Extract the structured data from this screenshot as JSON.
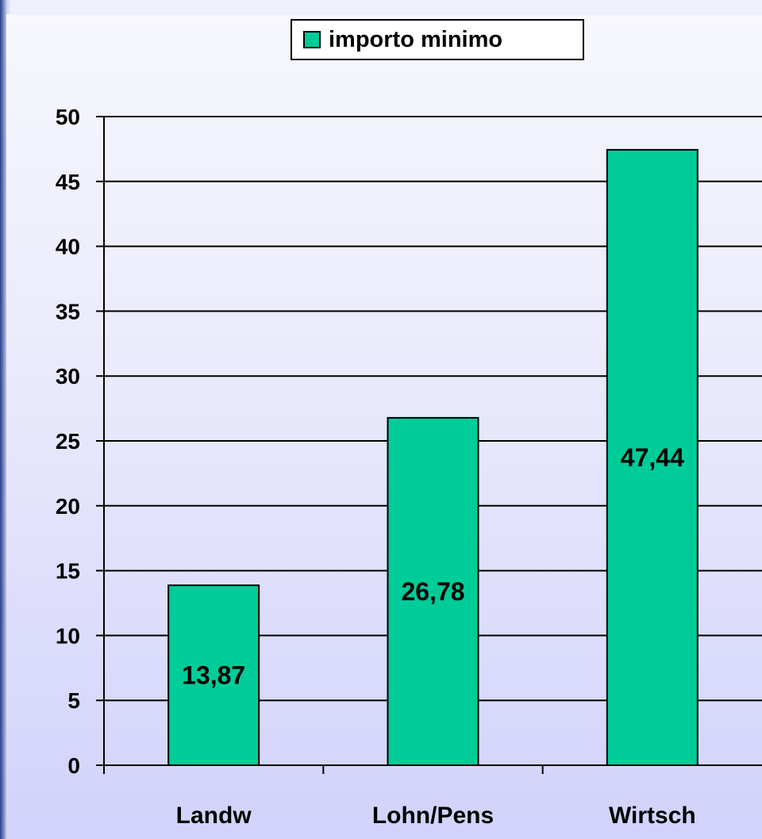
{
  "chart_data": {
    "type": "bar",
    "categories": [
      "Landw",
      "Lohn/Pens",
      "Wirtsch"
    ],
    "series": [
      {
        "name": "importo minimo",
        "values": [
          13.87,
          26.78,
          47.44
        ],
        "color": "#00cc99"
      }
    ],
    "data_labels": [
      "13,87",
      "26,78",
      "47,44"
    ],
    "y_ticks": [
      "0",
      "5",
      "10",
      "15",
      "20",
      "25",
      "30",
      "35",
      "40",
      "45",
      "50"
    ],
    "ylim": [
      0,
      50
    ],
    "grid": true,
    "legend_position": "top-center"
  }
}
